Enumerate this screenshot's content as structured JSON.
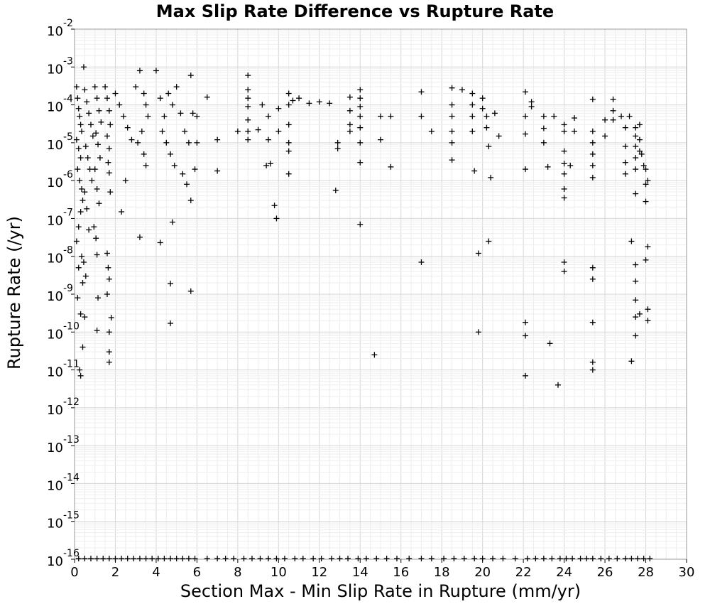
{
  "chart_data": {
    "type": "scatter",
    "title": "Max Slip Rate Difference vs Rupture Rate",
    "xlabel": "Section Max - Min Slip Rate in Rupture (mm/yr)",
    "ylabel": "Rupture Rate (/yr)",
    "xlim": [
      0,
      30
    ],
    "ylim": [
      1e-16,
      0.01
    ],
    "yscale": "log",
    "grid": true,
    "marker": "plus",
    "x_ticks": [
      "0",
      "2",
      "4",
      "6",
      "8",
      "10",
      "12",
      "14",
      "16",
      "18",
      "20",
      "22",
      "24",
      "26",
      "28",
      "30"
    ],
    "y_ticks": [
      {
        "base": "10",
        "exp": "-16"
      },
      {
        "base": "10",
        "exp": "-15"
      },
      {
        "base": "10",
        "exp": "-14"
      },
      {
        "base": "10",
        "exp": "-13"
      },
      {
        "base": "10",
        "exp": "-12"
      },
      {
        "base": "10",
        "exp": "-11"
      },
      {
        "base": "10",
        "exp": "-10"
      },
      {
        "base": "10",
        "exp": "-9"
      },
      {
        "base": "10",
        "exp": "-8"
      },
      {
        "base": "10",
        "exp": "-7"
      },
      {
        "base": "10",
        "exp": "-6"
      },
      {
        "base": "10",
        "exp": "-5"
      },
      {
        "base": "10",
        "exp": "-4"
      },
      {
        "base": "10",
        "exp": "-3"
      },
      {
        "base": "10",
        "exp": "-2"
      }
    ],
    "points": [
      [
        0.1,
        0.0003
      ],
      [
        0.15,
        0.00015
      ],
      [
        0.2,
        8e-05
      ],
      [
        0.25,
        5e-05
      ],
      [
        0.3,
        3e-05
      ],
      [
        0.35,
        2e-05
      ],
      [
        0.1,
        1.2e-05
      ],
      [
        0.2,
        7e-06
      ],
      [
        0.3,
        4e-06
      ],
      [
        0.15,
        2e-06
      ],
      [
        0.25,
        1e-06
      ],
      [
        0.35,
        6e-07
      ],
      [
        0.4,
        3e-07
      ],
      [
        0.3,
        1.5e-07
      ],
      [
        0.2,
        6e-08
      ],
      [
        0.1,
        2.5e-08
      ],
      [
        0.35,
        1e-08
      ],
      [
        0.2,
        5e-09
      ],
      [
        0.4,
        2e-09
      ],
      [
        0.15,
        8e-10
      ],
      [
        0.3,
        3e-10
      ],
      [
        0.25,
        1e-11
      ],
      [
        0.3,
        7e-12
      ],
      [
        0.4,
        4e-11
      ],
      [
        0.45,
        0.001
      ],
      [
        0.5,
        0.00025
      ],
      [
        0.6,
        0.00012
      ],
      [
        0.7,
        6e-05
      ],
      [
        0.8,
        3e-05
      ],
      [
        0.9,
        1.5e-05
      ],
      [
        0.55,
        8e-06
      ],
      [
        0.65,
        4e-06
      ],
      [
        0.75,
        2e-06
      ],
      [
        0.85,
        1e-06
      ],
      [
        0.5,
        5e-07
      ],
      [
        0.6,
        1.8e-07
      ],
      [
        0.7,
        5e-08
      ],
      [
        0.45,
        7e-09
      ],
      [
        0.55,
        3e-09
      ],
      [
        0.5,
        2.5e-10
      ],
      [
        1.0,
        0.0003
      ],
      [
        1.1,
        0.00015
      ],
      [
        1.2,
        7e-05
      ],
      [
        1.3,
        3.5e-05
      ],
      [
        1.05,
        1.8e-05
      ],
      [
        1.15,
        9e-06
      ],
      [
        1.25,
        4e-06
      ],
      [
        1.0,
        2e-06
      ],
      [
        1.1,
        6e-07
      ],
      [
        1.2,
        2.5e-07
      ],
      [
        0.95,
        6e-08
      ],
      [
        1.05,
        3e-08
      ],
      [
        1.1,
        1.1e-08
      ],
      [
        1.15,
        8e-10
      ],
      [
        1.1,
        1.1e-10
      ],
      [
        1.5,
        0.0003
      ],
      [
        1.6,
        0.00015
      ],
      [
        1.7,
        7e-05
      ],
      [
        1.75,
        3e-05
      ],
      [
        1.6,
        1.5e-05
      ],
      [
        1.7,
        7e-06
      ],
      [
        1.65,
        3e-06
      ],
      [
        1.7,
        1.6e-06
      ],
      [
        1.75,
        5e-07
      ],
      [
        1.6,
        1.2e-08
      ],
      [
        1.65,
        5e-09
      ],
      [
        1.7,
        2.5e-09
      ],
      [
        1.6,
        1e-09
      ],
      [
        1.7,
        1e-10
      ],
      [
        1.7,
        3e-11
      ],
      [
        1.7,
        1.6e-11
      ],
      [
        1.8,
        2.4e-10
      ],
      [
        2.0,
        0.0002
      ],
      [
        2.2,
        0.0001
      ],
      [
        2.4,
        5e-05
      ],
      [
        2.6,
        2.5e-05
      ],
      [
        2.8,
        1.2e-05
      ],
      [
        2.3,
        1.5e-07
      ],
      [
        2.5,
        1e-06
      ],
      [
        3.0,
        0.0003
      ],
      [
        3.2,
        0.0008
      ],
      [
        3.4,
        0.0002
      ],
      [
        3.5,
        0.0001
      ],
      [
        3.6,
        5e-05
      ],
      [
        3.3,
        2e-05
      ],
      [
        3.1,
        1e-05
      ],
      [
        3.4,
        5e-06
      ],
      [
        3.5,
        2.5e-06
      ],
      [
        3.2,
        3.2e-08
      ],
      [
        4.0,
        0.0008
      ],
      [
        4.2,
        0.00015
      ],
      [
        4.4,
        5e-05
      ],
      [
        4.3,
        2e-05
      ],
      [
        4.6,
        0.0002
      ],
      [
        4.8,
        0.0001
      ],
      [
        4.5,
        1e-05
      ],
      [
        4.7,
        5e-06
      ],
      [
        4.9,
        2.5e-06
      ],
      [
        4.2,
        2.3e-08
      ],
      [
        4.7,
        1.9e-09
      ],
      [
        4.7,
        1.7e-10
      ],
      [
        4.8,
        8e-08
      ],
      [
        5.0,
        0.0003
      ],
      [
        5.2,
        6e-05
      ],
      [
        5.4,
        2e-05
      ],
      [
        5.3,
        1.5e-06
      ],
      [
        5.6,
        1e-05
      ],
      [
        5.5,
        8e-07
      ],
      [
        5.7,
        0.0006
      ],
      [
        5.8,
        6e-05
      ],
      [
        5.9,
        2e-06
      ],
      [
        5.7,
        3e-07
      ],
      [
        5.7,
        1.2e-09
      ],
      [
        6.0,
        5e-05
      ],
      [
        6.0,
        1e-05
      ],
      [
        6.5,
        0.00016
      ],
      [
        7.0,
        1.2e-05
      ],
      [
        7.0,
        1.8e-06
      ],
      [
        8.0,
        2e-05
      ],
      [
        8.5,
        0.0006
      ],
      [
        8.5,
        0.00025
      ],
      [
        8.5,
        0.00015
      ],
      [
        8.5,
        9e-05
      ],
      [
        8.5,
        4e-05
      ],
      [
        8.5,
        2e-05
      ],
      [
        8.5,
        1.2e-05
      ],
      [
        9.0,
        2.2e-05
      ],
      [
        9.2,
        0.0001
      ],
      [
        9.4,
        2.5e-06
      ],
      [
        9.5,
        5e-05
      ],
      [
        9.6,
        2.8e-06
      ],
      [
        9.5,
        1.2e-05
      ],
      [
        9.8,
        2.2e-07
      ],
      [
        9.9,
        1e-07
      ],
      [
        10.0,
        8e-05
      ],
      [
        10.0,
        2e-05
      ],
      [
        10.5,
        0.0002
      ],
      [
        10.5,
        0.0001
      ],
      [
        10.5,
        3e-05
      ],
      [
        10.5,
        1e-05
      ],
      [
        10.5,
        6e-06
      ],
      [
        10.5,
        1.5e-06
      ],
      [
        10.7,
        0.00013
      ],
      [
        11.0,
        0.00015
      ],
      [
        11.5,
        0.00011
      ],
      [
        12.0,
        0.00012
      ],
      [
        12.5,
        0.00011
      ],
      [
        12.8,
        5.5e-07
      ],
      [
        12.9,
        1e-05
      ],
      [
        12.9,
        7e-06
      ],
      [
        13.5,
        0.00016
      ],
      [
        13.5,
        7e-05
      ],
      [
        13.5,
        3e-05
      ],
      [
        13.5,
        2e-05
      ],
      [
        14.0,
        0.00025
      ],
      [
        14.0,
        0.00015
      ],
      [
        14.0,
        9e-05
      ],
      [
        14.0,
        5e-05
      ],
      [
        14.0,
        2.5e-05
      ],
      [
        14.0,
        1e-05
      ],
      [
        14.0,
        3e-06
      ],
      [
        14.0,
        7e-08
      ],
      [
        14.7,
        2.5e-11
      ],
      [
        15.0,
        5e-05
      ],
      [
        15.0,
        1.2e-05
      ],
      [
        15.5,
        5e-05
      ],
      [
        15.5,
        2.3e-06
      ],
      [
        17.0,
        0.00022
      ],
      [
        17.0,
        5e-05
      ],
      [
        17.0,
        7e-09
      ],
      [
        17.5,
        2e-05
      ],
      [
        18.5,
        0.00028
      ],
      [
        18.5,
        0.0001
      ],
      [
        18.5,
        5e-05
      ],
      [
        18.5,
        2e-05
      ],
      [
        18.5,
        1e-05
      ],
      [
        18.5,
        3.5e-06
      ],
      [
        19.0,
        0.00025
      ],
      [
        19.5,
        0.0002
      ],
      [
        19.5,
        0.0001
      ],
      [
        19.5,
        5e-05
      ],
      [
        19.5,
        2e-05
      ],
      [
        19.6,
        1.8e-06
      ],
      [
        19.8,
        1.2e-08
      ],
      [
        19.8,
        1e-10
      ],
      [
        20.0,
        0.00015
      ],
      [
        20.0,
        8e-05
      ],
      [
        20.2,
        5e-05
      ],
      [
        20.2,
        2.5e-05
      ],
      [
        20.3,
        8e-06
      ],
      [
        20.4,
        1.2e-06
      ],
      [
        20.3,
        2.5e-08
      ],
      [
        20.6,
        6e-05
      ],
      [
        20.8,
        1.5e-05
      ],
      [
        22.1,
        0.00022
      ],
      [
        22.1,
        5e-05
      ],
      [
        22.1,
        1.7e-05
      ],
      [
        22.1,
        2e-06
      ],
      [
        22.1,
        1.8e-10
      ],
      [
        22.1,
        8e-11
      ],
      [
        22.1,
        7e-12
      ],
      [
        22.4,
        0.00012
      ],
      [
        22.4,
        9e-05
      ],
      [
        23.0,
        5e-05
      ],
      [
        23.0,
        2.4e-05
      ],
      [
        23.0,
        1e-05
      ],
      [
        23.2,
        2.3e-06
      ],
      [
        23.5,
        5e-05
      ],
      [
        23.3,
        5e-11
      ],
      [
        23.7,
        4e-12
      ],
      [
        24.0,
        3e-05
      ],
      [
        24.0,
        2e-05
      ],
      [
        24.0,
        6e-06
      ],
      [
        24.0,
        2.8e-06
      ],
      [
        24.0,
        1.5e-06
      ],
      [
        24.0,
        6e-07
      ],
      [
        24.0,
        3.5e-07
      ],
      [
        24.0,
        4e-09
      ],
      [
        24.0,
        7e-09
      ],
      [
        24.3,
        2.5e-06
      ],
      [
        24.5,
        4.5e-05
      ],
      [
        24.5,
        2e-05
      ],
      [
        25.4,
        0.00014
      ],
      [
        25.4,
        2e-05
      ],
      [
        25.4,
        1e-05
      ],
      [
        25.4,
        5e-06
      ],
      [
        25.4,
        2.5e-06
      ],
      [
        25.4,
        1.2e-06
      ],
      [
        25.4,
        5e-09
      ],
      [
        25.4,
        2.5e-09
      ],
      [
        25.4,
        1.8e-10
      ],
      [
        25.4,
        1.6e-11
      ],
      [
        25.4,
        1e-11
      ],
      [
        26.0,
        1.5e-05
      ],
      [
        26.0,
        4e-05
      ],
      [
        26.4,
        0.00014
      ],
      [
        26.4,
        7e-05
      ],
      [
        26.4,
        4e-05
      ],
      [
        26.8,
        5e-05
      ],
      [
        27.0,
        2.5e-05
      ],
      [
        27.0,
        8e-06
      ],
      [
        27.0,
        3e-06
      ],
      [
        27.0,
        1.5e-06
      ],
      [
        27.2,
        5e-05
      ],
      [
        27.3,
        2.5e-08
      ],
      [
        27.3,
        1.7e-11
      ],
      [
        27.5,
        2.5e-05
      ],
      [
        27.5,
        1.5e-05
      ],
      [
        27.5,
        8e-06
      ],
      [
        27.5,
        4e-06
      ],
      [
        27.5,
        2e-06
      ],
      [
        27.5,
        4.5e-07
      ],
      [
        27.5,
        6e-09
      ],
      [
        27.5,
        2.2e-09
      ],
      [
        27.5,
        7e-10
      ],
      [
        27.5,
        2.5e-10
      ],
      [
        27.5,
        8e-11
      ],
      [
        27.7,
        3e-05
      ],
      [
        27.7,
        1.2e-05
      ],
      [
        27.7,
        6e-06
      ],
      [
        27.7,
        3e-10
      ],
      [
        27.8,
        5e-06
      ],
      [
        27.9,
        2.5e-06
      ],
      [
        28.0,
        2e-06
      ],
      [
        28.0,
        8e-07
      ],
      [
        28.0,
        2.8e-07
      ],
      [
        28.0,
        8e-09
      ],
      [
        28.1,
        1.8e-08
      ],
      [
        28.1,
        4e-10
      ],
      [
        28.1,
        2e-10
      ],
      [
        28.1,
        1e-06
      ]
    ],
    "floor_points_x": [
      0.2,
      0.5,
      0.8,
      1.1,
      1.4,
      1.7,
      2.0,
      2.3,
      2.6,
      2.9,
      3.2,
      3.5,
      3.8,
      4.1,
      4.4,
      4.7,
      5.0,
      5.3,
      5.6,
      5.9,
      6.5,
      7.0,
      7.4,
      7.8,
      8.3,
      8.7,
      9.1,
      9.5,
      9.9,
      10.3,
      10.8,
      11.2,
      11.7,
      12.1,
      12.6,
      13.0,
      13.4,
      13.9,
      14.3,
      14.8,
      15.3,
      15.8,
      16.4,
      17.0,
      17.5,
      18.1,
      18.6,
      19.1,
      19.6,
      20.0,
      20.5,
      21.0,
      21.6,
      22.2,
      22.6,
      23.0,
      23.4,
      23.8,
      24.1,
      24.4,
      24.8,
      25.1,
      25.4,
      25.8,
      26.2,
      26.6,
      27.0,
      27.3,
      27.6,
      27.9,
      28.2
    ]
  }
}
